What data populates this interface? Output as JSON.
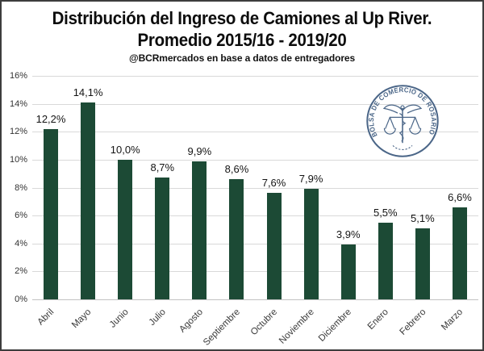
{
  "header": {
    "title_line1": "Distribución del Ingreso de Camiones al Up River.",
    "title_line2": "Promedio 2015/16 - 2019/20",
    "subtitle": "@BCRmercados en base a datos de entregadores"
  },
  "logo": {
    "ring_text": "BOLSA DE COMERCIO DE ROSARIO",
    "color": "#3c5a7e"
  },
  "chart_data": {
    "type": "bar",
    "title": "Distribución del Ingreso de Camiones al Up River. Promedio 2015/16 - 2019/20",
    "subtitle": "@BCRmercados en base a datos de entregadores",
    "categories": [
      "Abril",
      "Mayo",
      "Junio",
      "Julio",
      "Agosto",
      "Septiembre",
      "Octubre",
      "Noviembre",
      "Diciembre",
      "Enero",
      "Febrero",
      "Marzo"
    ],
    "values": [
      12.2,
      14.1,
      10.0,
      8.7,
      9.9,
      8.6,
      7.6,
      7.9,
      3.9,
      5.5,
      5.1,
      6.6
    ],
    "value_labels": [
      "12,2%",
      "14,1%",
      "10,0%",
      "8,7%",
      "9,9%",
      "8,6%",
      "7,6%",
      "7,9%",
      "3,9%",
      "5,5%",
      "5,1%",
      "6,6%"
    ],
    "xlabel": "",
    "ylabel": "",
    "ylim": [
      0,
      16
    ],
    "ytick_step": 2,
    "ytick_labels": [
      "0%",
      "2%",
      "4%",
      "6%",
      "8%",
      "10%",
      "12%",
      "14%",
      "16%"
    ],
    "grid": true,
    "legend": "none",
    "bar_color": "#1c4a35"
  }
}
